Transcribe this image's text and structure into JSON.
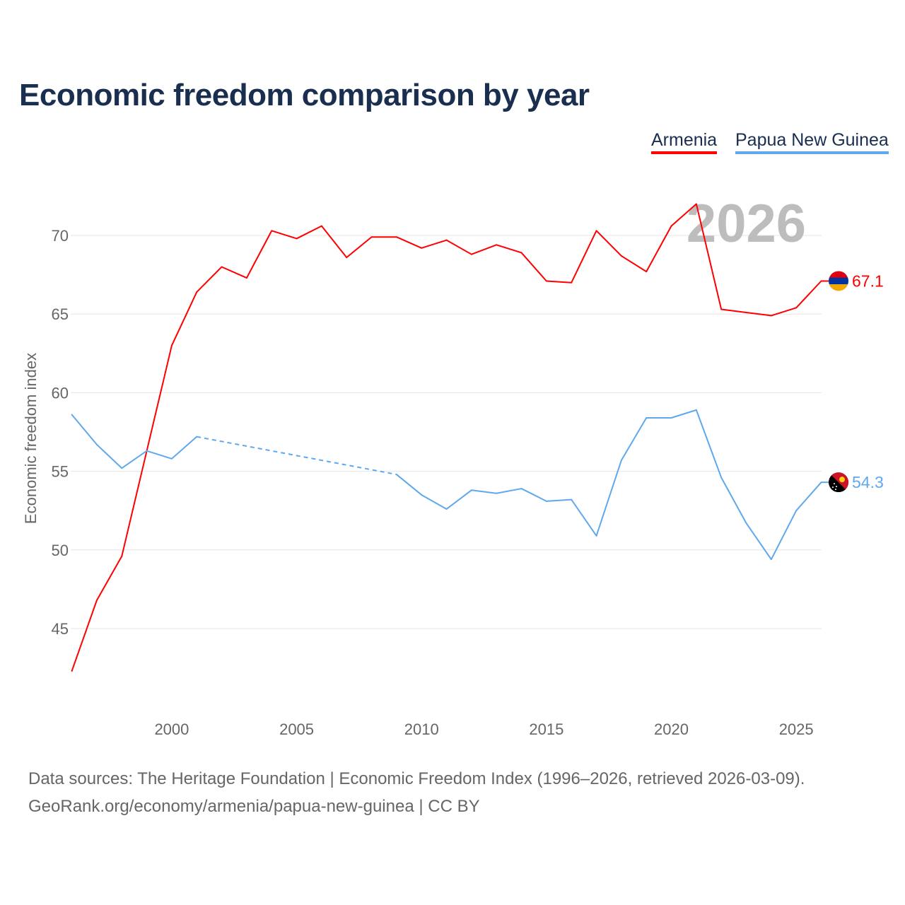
{
  "title": "Economic freedom comparison by year",
  "footer": {
    "line1": "Data sources: The Heritage Foundation | Economic Freedom Index (1996–2026, retrieved 2026-03-09).",
    "line2": "GeoRank.org/economy/armenia/papua-new-guinea | CC BY"
  },
  "chart_data": {
    "type": "line",
    "title": "Economic freedom comparison by year",
    "xlabel": "",
    "ylabel": "Economic freedom index",
    "year_watermark": "2026",
    "xlim": [
      1996,
      2026
    ],
    "ylim": [
      41.5,
      73
    ],
    "xticks": [
      "2000",
      "2005",
      "2010",
      "2015",
      "2020",
      "2025"
    ],
    "yticks": [
      "45",
      "50",
      "55",
      "60",
      "65",
      "70"
    ],
    "grid": true,
    "legend_placement": "top-right",
    "x": [
      1996,
      1997,
      1998,
      1999,
      2000,
      2001,
      2002,
      2003,
      2004,
      2005,
      2006,
      2007,
      2008,
      2009,
      2010,
      2011,
      2012,
      2013,
      2014,
      2015,
      2016,
      2017,
      2018,
      2019,
      2020,
      2021,
      2022,
      2023,
      2024,
      2025,
      2026
    ],
    "series": [
      {
        "name": "Armenia",
        "color": "#ff0000",
        "end_label": "67.1",
        "values": [
          42.3,
          46.8,
          49.6,
          56.3,
          63.0,
          66.4,
          68.0,
          67.3,
          70.3,
          69.8,
          70.6,
          68.6,
          69.9,
          69.9,
          69.2,
          69.7,
          68.8,
          69.4,
          68.9,
          67.1,
          67.0,
          70.3,
          68.7,
          67.7,
          70.6,
          72.0,
          65.3,
          65.1,
          64.9,
          65.4,
          67.1
        ]
      },
      {
        "name": "Papua New Guinea",
        "color": "#5fa8ee",
        "end_label": "54.3",
        "values": [
          58.6,
          56.7,
          55.2,
          56.3,
          55.8,
          57.2,
          null,
          null,
          null,
          null,
          null,
          null,
          null,
          54.8,
          53.5,
          52.6,
          53.8,
          53.6,
          53.9,
          53.1,
          53.2,
          50.9,
          55.7,
          58.4,
          58.4,
          58.9,
          54.6,
          51.7,
          49.4,
          52.5,
          54.3
        ]
      }
    ]
  }
}
